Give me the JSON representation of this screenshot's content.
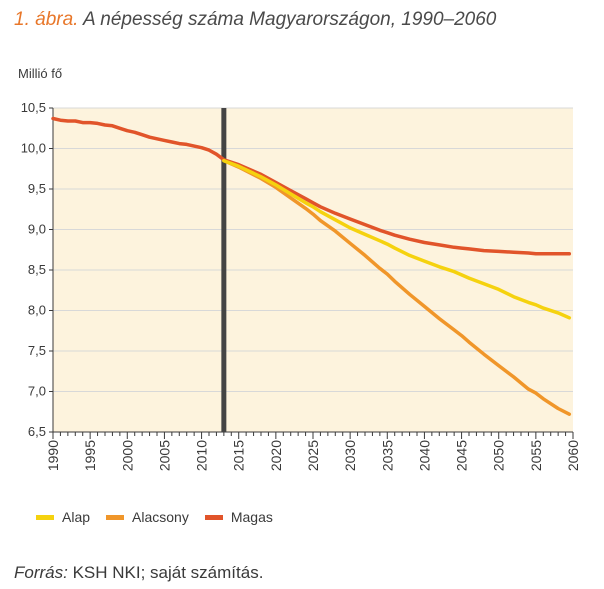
{
  "figure": {
    "number": "1. ábra.",
    "title": "A népesség száma Magyarországon, 1990–2060"
  },
  "source": {
    "label": "Forrás:",
    "text": "KSH NKI; saját számítás."
  },
  "colors": {
    "plot_background": "#fdf3dd",
    "grid": "#d8d8d8",
    "axis": "#3a3a3a",
    "marker_line": "#444444",
    "title_number": "#e8772a"
  },
  "chart_data": {
    "type": "line",
    "ylabel": "Millió fő",
    "xlim": [
      1990,
      2060
    ],
    "ylim": [
      6.5,
      10.5
    ],
    "x_ticks": [
      "1990",
      "1995",
      "2000",
      "2005",
      "2010",
      "2015",
      "2020",
      "2025",
      "2030",
      "2035",
      "2040",
      "2045",
      "2050",
      "2055",
      "2060"
    ],
    "y_ticks": [
      "10,5",
      "10,0",
      "9,5",
      "9,0",
      "8,5",
      "8,0",
      "7,5",
      "7,0",
      "6,5"
    ],
    "grid": "horizontal",
    "legend_position": "bottom",
    "vertical_marker_x": 2013,
    "series": [
      {
        "name": "Alap",
        "color": "#f5d20f",
        "x": [
          2013,
          2015,
          2018,
          2020,
          2022,
          2024,
          2025,
          2026,
          2028,
          2030,
          2032,
          2034,
          2035,
          2036,
          2038,
          2040,
          2042,
          2044,
          2045,
          2046,
          2048,
          2050,
          2052,
          2054,
          2055,
          2056,
          2058,
          2059.5
        ],
        "values": [
          9.85,
          9.78,
          9.65,
          9.55,
          9.44,
          9.33,
          9.28,
          9.22,
          9.12,
          9.02,
          8.94,
          8.86,
          8.82,
          8.77,
          8.68,
          8.61,
          8.54,
          8.48,
          8.44,
          8.4,
          8.33,
          8.26,
          8.17,
          8.1,
          8.07,
          8.03,
          7.97,
          7.91
        ]
      },
      {
        "name": "Alacsony",
        "color": "#f0962a",
        "x": [
          2013,
          2015,
          2018,
          2020,
          2022,
          2024,
          2025,
          2026,
          2028,
          2030,
          2032,
          2034,
          2035,
          2036,
          2038,
          2040,
          2042,
          2044,
          2045,
          2046,
          2048,
          2050,
          2052,
          2054,
          2055,
          2056,
          2058,
          2059.5
        ],
        "values": [
          9.85,
          9.77,
          9.63,
          9.52,
          9.39,
          9.26,
          9.19,
          9.11,
          8.98,
          8.83,
          8.68,
          8.52,
          8.45,
          8.36,
          8.2,
          8.05,
          7.9,
          7.76,
          7.69,
          7.61,
          7.46,
          7.32,
          7.18,
          7.03,
          6.98,
          6.91,
          6.79,
          6.72
        ]
      },
      {
        "name": "Magas",
        "color": "#e1542a",
        "x": [
          1990,
          1991,
          1992,
          1993,
          1994,
          1995,
          1996,
          1997,
          1998,
          1999,
          2000,
          2001,
          2002,
          2003,
          2004,
          2005,
          2006,
          2007,
          2008,
          2009,
          2010,
          2011,
          2012,
          2013,
          2015,
          2018,
          2020,
          2022,
          2024,
          2025,
          2026,
          2028,
          2030,
          2032,
          2034,
          2035,
          2036,
          2038,
          2040,
          2042,
          2044,
          2045,
          2046,
          2048,
          2050,
          2052,
          2054,
          2055,
          2056,
          2058,
          2059.5
        ],
        "values": [
          10.37,
          10.35,
          10.34,
          10.34,
          10.32,
          10.32,
          10.31,
          10.29,
          10.28,
          10.25,
          10.22,
          10.2,
          10.17,
          10.14,
          10.12,
          10.1,
          10.08,
          10.06,
          10.05,
          10.03,
          10.01,
          9.98,
          9.93,
          9.86,
          9.8,
          9.68,
          9.58,
          9.48,
          9.38,
          9.33,
          9.28,
          9.2,
          9.13,
          9.06,
          8.99,
          8.96,
          8.93,
          8.88,
          8.84,
          8.81,
          8.78,
          8.77,
          8.76,
          8.74,
          8.73,
          8.72,
          8.71,
          8.7,
          8.7,
          8.7,
          8.7
        ]
      }
    ]
  }
}
